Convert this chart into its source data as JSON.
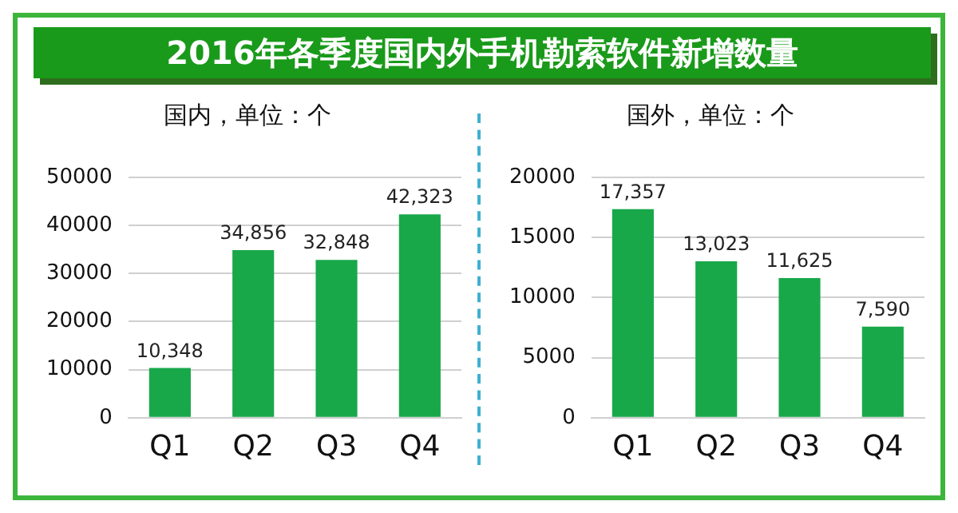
{
  "chart_data": [
    {
      "type": "bar",
      "title": "2016年各季度国内外手机勒索软件新增数量",
      "subtitle": "国内，单位：个",
      "categories": [
        "Q1",
        "Q2",
        "Q3",
        "Q4"
      ],
      "values": [
        10348,
        34856,
        32848,
        42323
      ],
      "value_labels": [
        "10,348",
        "34,856",
        "32,848",
        "42,323"
      ],
      "color": "#18a84a",
      "ylim": [
        0,
        50000
      ],
      "yticks": [
        0,
        10000,
        20000,
        30000,
        40000,
        50000
      ],
      "grid": "y",
      "legend": false
    },
    {
      "type": "bar",
      "title": "国外，单位：个",
      "categories": [
        "Q1",
        "Q2",
        "Q3",
        "Q4"
      ],
      "values": [
        17357,
        13023,
        11625,
        7590
      ],
      "value_labels": [
        "17,357",
        "13,023",
        "11,625",
        "7,590"
      ],
      "color": "#18a84a",
      "ylim": [
        0,
        20000
      ],
      "yticks": [
        0,
        5000,
        10000,
        15000,
        20000
      ],
      "grid": "y",
      "legend": false
    }
  ]
}
